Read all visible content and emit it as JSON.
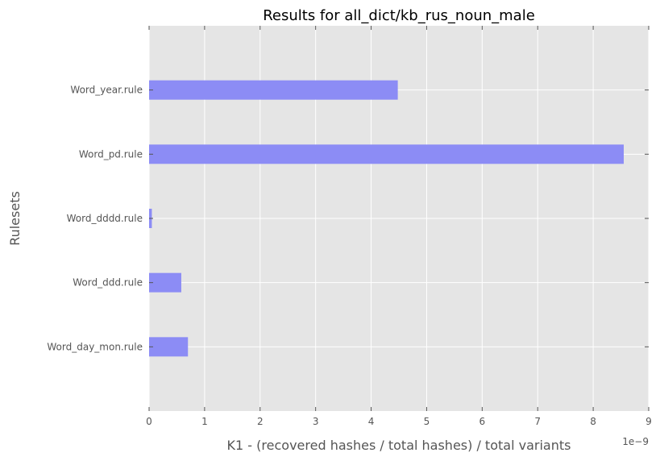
{
  "chart_data": {
    "type": "bar",
    "orientation": "horizontal",
    "title": "Results for all_dict/kb_rus_noun_male",
    "xlabel": "K1 - (recovered hashes / total hashes) / total variants",
    "ylabel": "Rulesets",
    "x_offset_label": "1e−9",
    "x_scale": 1e-09,
    "xlim": [
      0,
      9
    ],
    "x_ticks": [
      "0",
      "1",
      "2",
      "3",
      "4",
      "5",
      "6",
      "7",
      "8",
      "9"
    ],
    "categories": [
      "Word_year.rule",
      "Word_pd.rule",
      "Word_dddd.rule",
      "Word_ddd.rule",
      "Word_day_mon.rule"
    ],
    "values": [
      4.48,
      8.55,
      0.05,
      0.58,
      0.7
    ],
    "bar_color": "#8c8cf5",
    "background_color": "#e5e5e5",
    "grid": true
  }
}
